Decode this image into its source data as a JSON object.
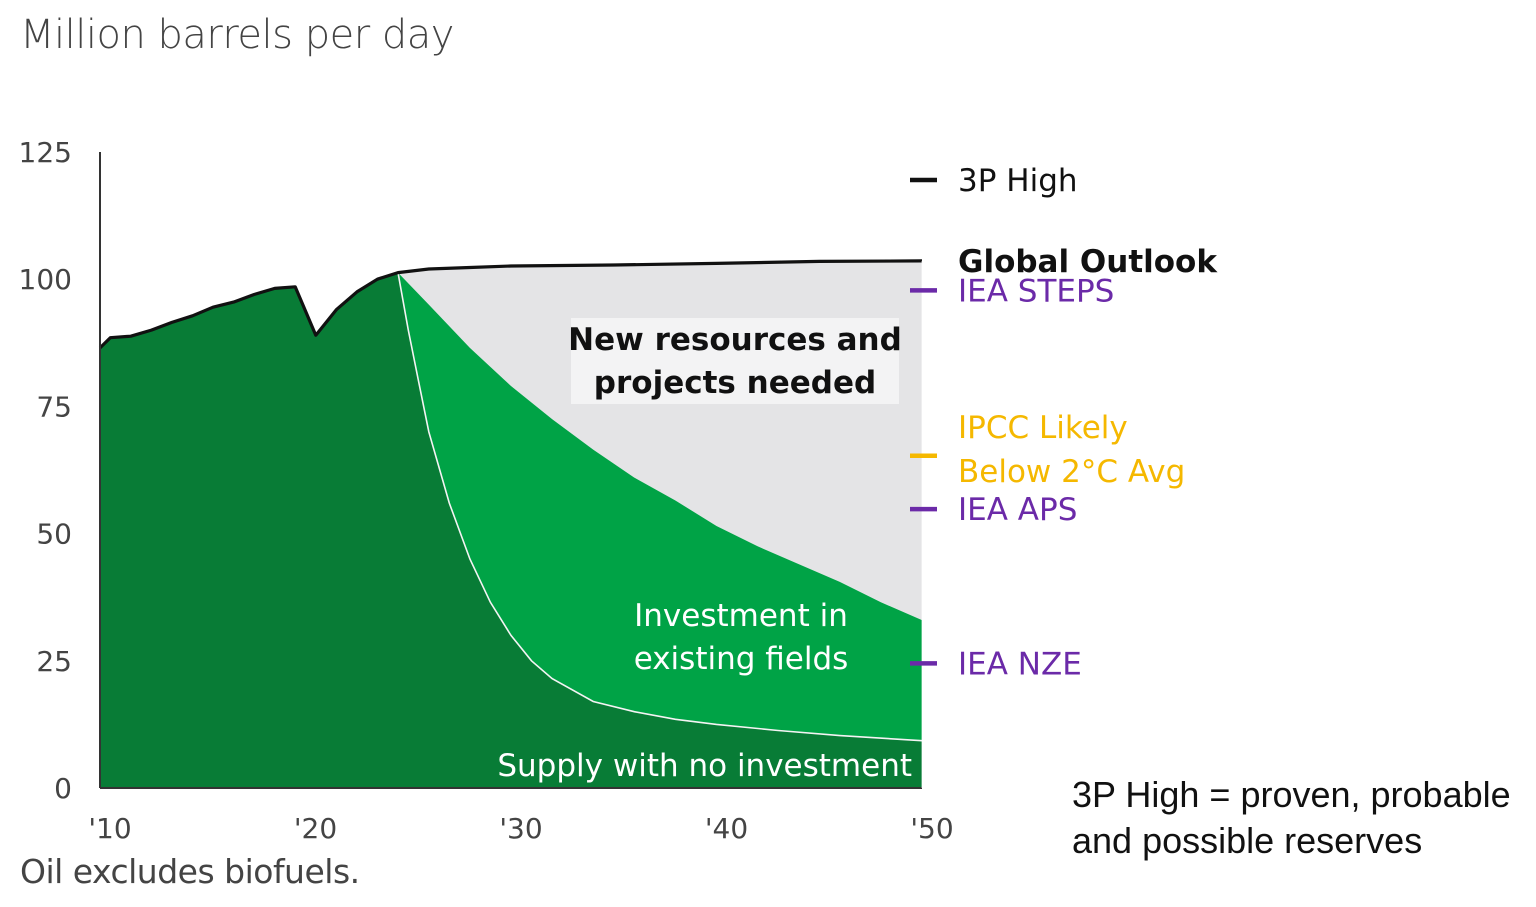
{
  "title": "Million barrels per day",
  "footnote": "Oil excludes biofuels.",
  "definition": {
    "line1": "3P High = proven, probable",
    "line2": "and possible reserves"
  },
  "colors": {
    "no_investment": "#087c36",
    "existing_fields": "#00a346",
    "new_resources": "#e4e4e6",
    "outlook_line": "#111111",
    "iea": "#6b2aa8",
    "ipcc": "#f5b800",
    "axis_text": "#444444"
  },
  "chart_data": {
    "type": "area",
    "title": "Million barrels per day",
    "ylim": [
      0,
      125
    ],
    "xlim": [
      2010,
      2050
    ],
    "yticks": [
      0,
      25,
      50,
      75,
      100,
      125
    ],
    "ytick_labels": [
      "0",
      "25",
      "50",
      "75",
      "100",
      "125"
    ],
    "xticks": [
      2010,
      2020,
      2030,
      2040,
      2050
    ],
    "xtick_labels": [
      "'10",
      "'20",
      "'30",
      "'40",
      "'50"
    ],
    "series": [
      {
        "name": "Global Outlook",
        "points": [
          [
            2010,
            86.5
          ],
          [
            2010.5,
            88.5
          ],
          [
            2011.5,
            88.8
          ],
          [
            2012.5,
            90
          ],
          [
            2013.5,
            91.5
          ],
          [
            2014.5,
            92.8
          ],
          [
            2015.5,
            94.5
          ],
          [
            2016.5,
            95.5
          ],
          [
            2017.5,
            97
          ],
          [
            2018.5,
            98.2
          ],
          [
            2019.5,
            98.5
          ],
          [
            2020.5,
            89
          ],
          [
            2021.5,
            94
          ],
          [
            2022.5,
            97.5
          ],
          [
            2023.5,
            100
          ],
          [
            2024.5,
            101.3
          ],
          [
            2026,
            102
          ],
          [
            2028,
            102.3
          ],
          [
            2030,
            102.6
          ],
          [
            2035,
            102.8
          ],
          [
            2040,
            103.1
          ],
          [
            2045,
            103.5
          ],
          [
            2050,
            103.6
          ]
        ]
      },
      {
        "name": "Investment in existing fields",
        "points": [
          [
            2024.5,
            101.3
          ],
          [
            2026,
            95
          ],
          [
            2028,
            86.5
          ],
          [
            2030,
            79
          ],
          [
            2032,
            72.5
          ],
          [
            2034,
            66.5
          ],
          [
            2036,
            61
          ],
          [
            2038,
            56.5
          ],
          [
            2040,
            51.5
          ],
          [
            2042,
            47.5
          ],
          [
            2044,
            44
          ],
          [
            2046,
            40.5
          ],
          [
            2048,
            36.5
          ],
          [
            2050,
            33
          ]
        ]
      },
      {
        "name": "Supply with no investment",
        "points": [
          [
            2024.5,
            101.3
          ],
          [
            2025,
            90
          ],
          [
            2025.5,
            80
          ],
          [
            2026,
            70
          ],
          [
            2027,
            56
          ],
          [
            2028,
            45
          ],
          [
            2029,
            36.5
          ],
          [
            2030,
            30
          ],
          [
            2031,
            25
          ],
          [
            2032,
            21.5
          ],
          [
            2034,
            17
          ],
          [
            2036,
            15
          ],
          [
            2038,
            13.5
          ],
          [
            2040,
            12.5
          ],
          [
            2043,
            11.3
          ],
          [
            2046,
            10.3
          ],
          [
            2050,
            9.3
          ]
        ]
      }
    ],
    "area_labels": {
      "new_resources": [
        "New resources and",
        "projects needed"
      ],
      "existing": [
        "Investment in",
        "existing fields"
      ],
      "no_investment": "Supply with no investment"
    },
    "reference_markers": [
      {
        "label": "3P High",
        "value": 119.5,
        "color": "#111111",
        "bold": false,
        "marker": true
      },
      {
        "label": "Global Outlook",
        "value": 103.6,
        "color": "#111111",
        "bold": true,
        "marker": false
      },
      {
        "label": "IEA STEPS",
        "value": 97.8,
        "color": "#6b2aa8",
        "bold": false,
        "marker": true
      },
      {
        "label": "IPCC Likely Below 2°C Avg",
        "lines": [
          "IPCC Likely",
          "Below 2°C Avg"
        ],
        "value": 65.3,
        "color": "#f5b800",
        "bold": false,
        "marker": true
      },
      {
        "label": "IEA APS",
        "value": 54.8,
        "color": "#6b2aa8",
        "bold": false,
        "marker": true
      },
      {
        "label": "IEA NZE",
        "value": 24.5,
        "color": "#6b2aa8",
        "bold": false,
        "marker": true
      }
    ]
  }
}
